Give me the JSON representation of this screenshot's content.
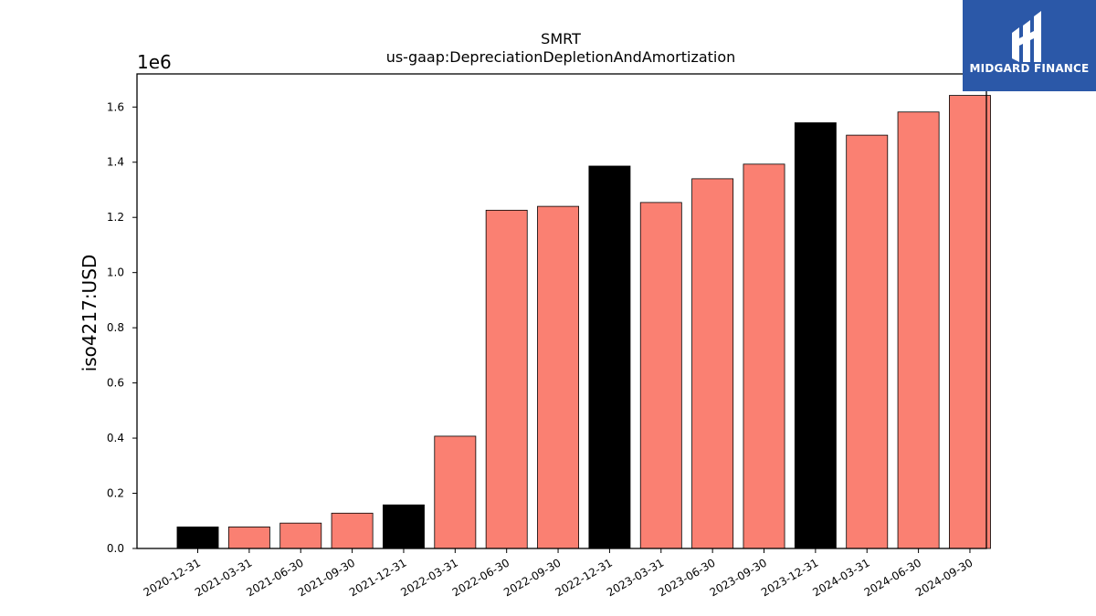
{
  "chart_data": {
    "type": "bar",
    "title": "SMRT",
    "subtitle": "us-gaap:DepreciationDepletionAndAmortization",
    "ylabel": "iso4217:USD",
    "y_multiplier_label": "1e6",
    "ylim": [
      0,
      1720000
    ],
    "yticks": [
      0,
      200000,
      400000,
      600000,
      800000,
      1000000,
      1200000,
      1400000,
      1600000
    ],
    "ytick_labels": [
      "0.0",
      "0.2",
      "0.4",
      "0.6",
      "0.8",
      "1.0",
      "1.2",
      "1.4",
      "1.6"
    ],
    "categories": [
      "2020-12-31",
      "2021-03-31",
      "2021-06-30",
      "2021-09-30",
      "2021-12-31",
      "2022-03-31",
      "2022-06-30",
      "2022-09-30",
      "2022-12-31",
      "2023-03-31",
      "2023-06-30",
      "2023-09-30",
      "2023-12-31",
      "2024-03-31",
      "2024-06-30",
      "2024-09-30"
    ],
    "values": [
      78000,
      78000,
      92000,
      128000,
      158000,
      407000,
      1226000,
      1240000,
      1386000,
      1254000,
      1340000,
      1393000,
      1543000,
      1498000,
      1582000,
      1642000
    ],
    "bar_colors": [
      "#000000",
      "#fa8072",
      "#fa8072",
      "#fa8072",
      "#000000",
      "#fa8072",
      "#fa8072",
      "#fa8072",
      "#000000",
      "#fa8072",
      "#fa8072",
      "#fa8072",
      "#000000",
      "#fa8072",
      "#fa8072",
      "#fa8072"
    ],
    "grid": false,
    "legend": "none"
  },
  "logo": {
    "text": "MIDGARD FINANCE",
    "background": "#2b58a8",
    "icon": "midgard-logo-icon"
  }
}
